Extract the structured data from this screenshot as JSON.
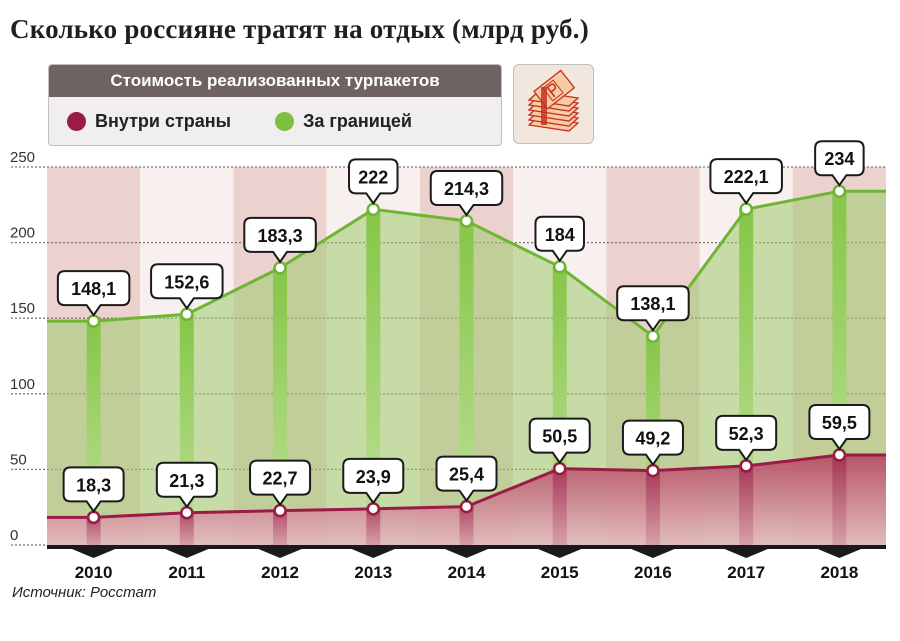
{
  "page_title": "Сколько россияне тратят на отдых (млрд руб.)",
  "legend": {
    "header": "Стоимость реализованных турпакетов",
    "items": [
      {
        "label": "Внутри страны",
        "color": "#9b1b47"
      },
      {
        "label": "За границей",
        "color": "#7dbf3e"
      }
    ]
  },
  "icon": "money-stack-icon",
  "source": "Источник: Росстат",
  "chart_data": {
    "type": "area",
    "title": "Сколько россияне тратят на отдых (млрд руб.)",
    "categories": [
      "2010",
      "2011",
      "2012",
      "2013",
      "2014",
      "2015",
      "2016",
      "2017",
      "2018"
    ],
    "ylim": [
      0,
      250
    ],
    "yticks": [
      "0",
      "50",
      "100",
      "150",
      "200",
      "250"
    ],
    "grid": true,
    "legend_position": "top-left",
    "series": [
      {
        "name": "Внутри страны",
        "color": "#9b1b47",
        "values": [
          18.3,
          21.3,
          22.7,
          23.9,
          25.4,
          50.5,
          49.2,
          52.3,
          59.5
        ],
        "labels": [
          "18,3",
          "21,3",
          "22,7",
          "23,9",
          "25,4",
          "50,5",
          "49,2",
          "52,3",
          "59,5"
        ]
      },
      {
        "name": "За границей",
        "color": "#7dbf3e",
        "values": [
          148.1,
          152.6,
          183.3,
          222,
          214.3,
          184,
          138.1,
          222.1,
          234
        ],
        "labels": [
          "148,1",
          "152,6",
          "183,3",
          "222",
          "214,3",
          "184",
          "138,1",
          "222,1",
          "234"
        ]
      }
    ]
  }
}
